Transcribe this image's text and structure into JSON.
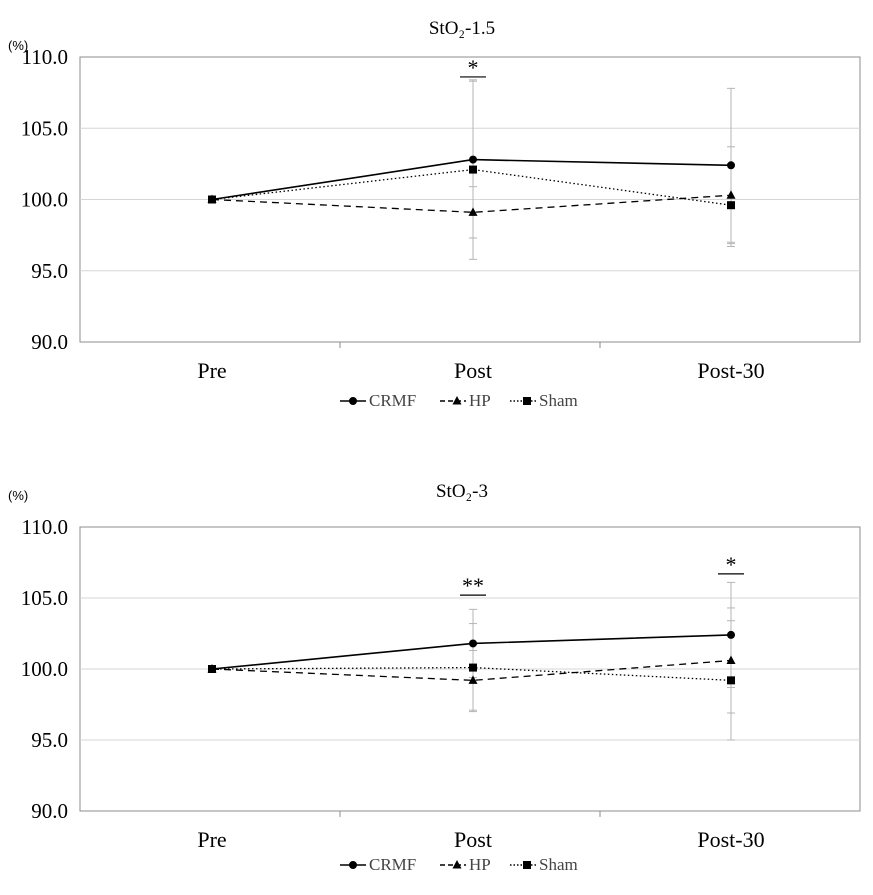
{
  "chart_data": [
    {
      "type": "line",
      "title": "StO₂-1.5",
      "ylabel": "(%)",
      "xlabel": "",
      "categories": [
        "Pre",
        "Post",
        "Post-30"
      ],
      "ylim": [
        90.0,
        110.0
      ],
      "yticks": [
        "110.0",
        "105.0",
        "100.0",
        "95.0",
        "90.0"
      ],
      "grid": true,
      "legend_position": "bottom",
      "series": [
        {
          "name": "CRMF",
          "marker": "circle",
          "line": "solid",
          "values": [
            100.0,
            102.8,
            102.4
          ],
          "error": [
            0,
            5.5,
            5.4
          ]
        },
        {
          "name": "HP",
          "marker": "triangle",
          "line": "dashed",
          "values": [
            100.0,
            99.1,
            100.3
          ],
          "error": [
            0,
            1.8,
            3.4
          ]
        },
        {
          "name": "Sham",
          "marker": "square",
          "line": "dotted",
          "values": [
            100.0,
            102.1,
            99.6
          ],
          "error": [
            0,
            6.3,
            2.9
          ]
        }
      ],
      "significance": [
        {
          "category": "Post",
          "label": "*",
          "y": 108.6
        }
      ]
    },
    {
      "type": "line",
      "title": "StO₂-3",
      "ylabel": "(%)",
      "xlabel": "",
      "categories": [
        "Pre",
        "Post",
        "Post-30"
      ],
      "ylim": [
        90.0,
        110.0
      ],
      "yticks": [
        "110.0",
        "105.0",
        "100.0",
        "95.0",
        "90.0"
      ],
      "grid": true,
      "legend_position": "bottom",
      "series": [
        {
          "name": "CRMF",
          "marker": "circle",
          "line": "solid",
          "values": [
            100.0,
            101.8,
            102.4
          ],
          "error": [
            0,
            2.4,
            3.7
          ]
        },
        {
          "name": "HP",
          "marker": "triangle",
          "line": "dashed",
          "values": [
            100.0,
            99.2,
            100.6
          ],
          "error": [
            0,
            2.1,
            3.7
          ]
        },
        {
          "name": "Sham",
          "marker": "square",
          "line": "dotted",
          "values": [
            100.0,
            100.1,
            99.2
          ],
          "error": [
            0,
            3.1,
            4.2
          ]
        }
      ],
      "significance": [
        {
          "category": "Post",
          "label": "**",
          "y": 105.2
        },
        {
          "category": "Post-30",
          "label": "*",
          "y": 106.7
        }
      ]
    }
  ]
}
